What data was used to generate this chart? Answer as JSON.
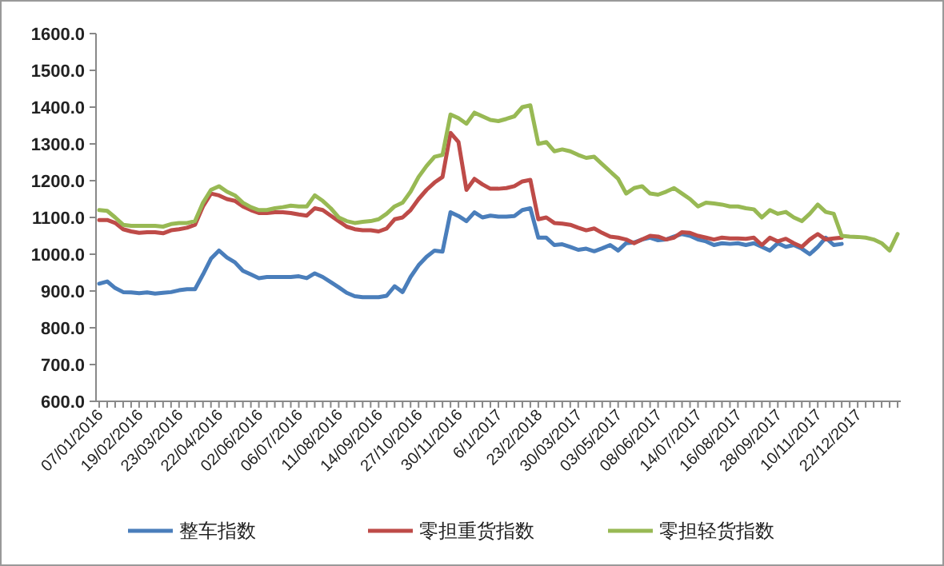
{
  "chart_data": {
    "type": "line",
    "categories": [
      "07/01/2016",
      null,
      null,
      null,
      null,
      "19/02/2016",
      null,
      null,
      null,
      null,
      "23/03/2016",
      null,
      null,
      null,
      null,
      "22/04/2016",
      null,
      null,
      null,
      null,
      "02/06/2016",
      null,
      null,
      null,
      null,
      "06/07/2016",
      null,
      null,
      null,
      null,
      "11/08/2016",
      null,
      null,
      null,
      null,
      "14/09/2016",
      null,
      null,
      null,
      null,
      "27/10/2016",
      null,
      null,
      null,
      null,
      "30/11/2016",
      null,
      null,
      null,
      null,
      "6/1/2017",
      null,
      null,
      null,
      null,
      "23/2/2018",
      null,
      null,
      null,
      null,
      "30/03/2017",
      null,
      null,
      null,
      null,
      "03/05/2017",
      null,
      null,
      null,
      null,
      "08/06/2017",
      null,
      null,
      null,
      null,
      "14/07/2017",
      null,
      null,
      null,
      null,
      "16/08/2017",
      null,
      null,
      null,
      null,
      "28/09/2017",
      null,
      null,
      null,
      null,
      "10/11/2017",
      null,
      null,
      null,
      null,
      "22/12/2017",
      null,
      null,
      null,
      null,
      null
    ],
    "series": [
      {
        "name": "整车指数",
        "color": "#4a7ebb",
        "values": [
          920,
          926,
          908,
          897,
          896,
          894,
          896,
          893,
          895,
          897,
          902,
          905,
          905,
          945,
          988,
          1010,
          991,
          978,
          955,
          945,
          935,
          938,
          938,
          938,
          938,
          940,
          935,
          948,
          938,
          924,
          910,
          895,
          886,
          883,
          883,
          883,
          887,
          913,
          897,
          938,
          970,
          993,
          1010,
          1007,
          1114,
          1104,
          1090,
          1114,
          1100,
          1105,
          1102,
          1102,
          1104,
          1120,
          1125,
          1045,
          1045,
          1025,
          1027,
          1020,
          1012,
          1015,
          1008,
          1016,
          1025,
          1010,
          1030,
          1032,
          1040,
          1045,
          1038,
          1040,
          1048,
          1055,
          1050,
          1040,
          1035,
          1025,
          1030,
          1028,
          1030,
          1025,
          1030,
          1020,
          1010,
          1030,
          1020,
          1025,
          1015,
          1000,
          1020,
          1045,
          1025,
          1028,
          null,
          null,
          null,
          null,
          null,
          null,
          null
        ]
      },
      {
        "name": "零担重货指数",
        "color": "#be4b48",
        "values": [
          1093,
          1093,
          1085,
          1068,
          1062,
          1058,
          1060,
          1060,
          1057,
          1065,
          1068,
          1072,
          1080,
          1130,
          1165,
          1160,
          1150,
          1145,
          1130,
          1120,
          1112,
          1112,
          1114,
          1114,
          1112,
          1108,
          1105,
          1125,
          1120,
          1105,
          1090,
          1075,
          1068,
          1065,
          1065,
          1062,
          1070,
          1095,
          1100,
          1120,
          1150,
          1175,
          1195,
          1210,
          1330,
          1305,
          1175,
          1205,
          1190,
          1178,
          1178,
          1180,
          1185,
          1198,
          1202,
          1095,
          1100,
          1085,
          1083,
          1080,
          1072,
          1065,
          1070,
          1058,
          1048,
          1045,
          1040,
          1030,
          1040,
          1050,
          1048,
          1040,
          1045,
          1060,
          1058,
          1050,
          1045,
          1040,
          1045,
          1043,
          1043,
          1042,
          1045,
          1025,
          1045,
          1035,
          1042,
          1030,
          1020,
          1040,
          1055,
          1040,
          1043,
          1045,
          null,
          null,
          null,
          null,
          null,
          null,
          null
        ]
      },
      {
        "name": "零担轻货指数",
        "color": "#98b954",
        "values": [
          1120,
          1118,
          1100,
          1080,
          1077,
          1077,
          1077,
          1077,
          1075,
          1082,
          1085,
          1085,
          1090,
          1140,
          1175,
          1185,
          1170,
          1160,
          1140,
          1128,
          1120,
          1120,
          1125,
          1128,
          1132,
          1130,
          1130,
          1160,
          1145,
          1125,
          1100,
          1090,
          1085,
          1088,
          1090,
          1095,
          1110,
          1130,
          1140,
          1170,
          1210,
          1240,
          1265,
          1270,
          1380,
          1370,
          1355,
          1385,
          1375,
          1365,
          1362,
          1368,
          1375,
          1400,
          1405,
          1300,
          1305,
          1280,
          1285,
          1280,
          1270,
          1262,
          1265,
          1245,
          1225,
          1205,
          1165,
          1180,
          1185,
          1165,
          1162,
          1170,
          1180,
          1165,
          1150,
          1130,
          1140,
          1138,
          1135,
          1130,
          1130,
          1125,
          1122,
          1100,
          1120,
          1110,
          1115,
          1100,
          1090,
          1110,
          1135,
          1115,
          1110,
          1050,
          1048,
          1047,
          1045,
          1040,
          1030,
          1010,
          1055
        ]
      }
    ],
    "ylim": [
      600,
      1600
    ],
    "yticks": [
      {
        "value": 600,
        "label": "600.0"
      },
      {
        "value": 700,
        "label": "700.0"
      },
      {
        "value": 800,
        "label": "800.0"
      },
      {
        "value": 900,
        "label": "900.0"
      },
      {
        "value": 1000,
        "label": "1000.0"
      },
      {
        "value": 1100,
        "label": "1100.0"
      },
      {
        "value": 1200,
        "label": "1200.0"
      },
      {
        "value": 1300,
        "label": "1300.0"
      },
      {
        "value": 1400,
        "label": "1400.0"
      },
      {
        "value": 1500,
        "label": "1500.0"
      },
      {
        "value": 1600,
        "label": "1600.0"
      }
    ],
    "grid": false,
    "legend": "bottom",
    "marker": "none",
    "line_style": "solid"
  }
}
